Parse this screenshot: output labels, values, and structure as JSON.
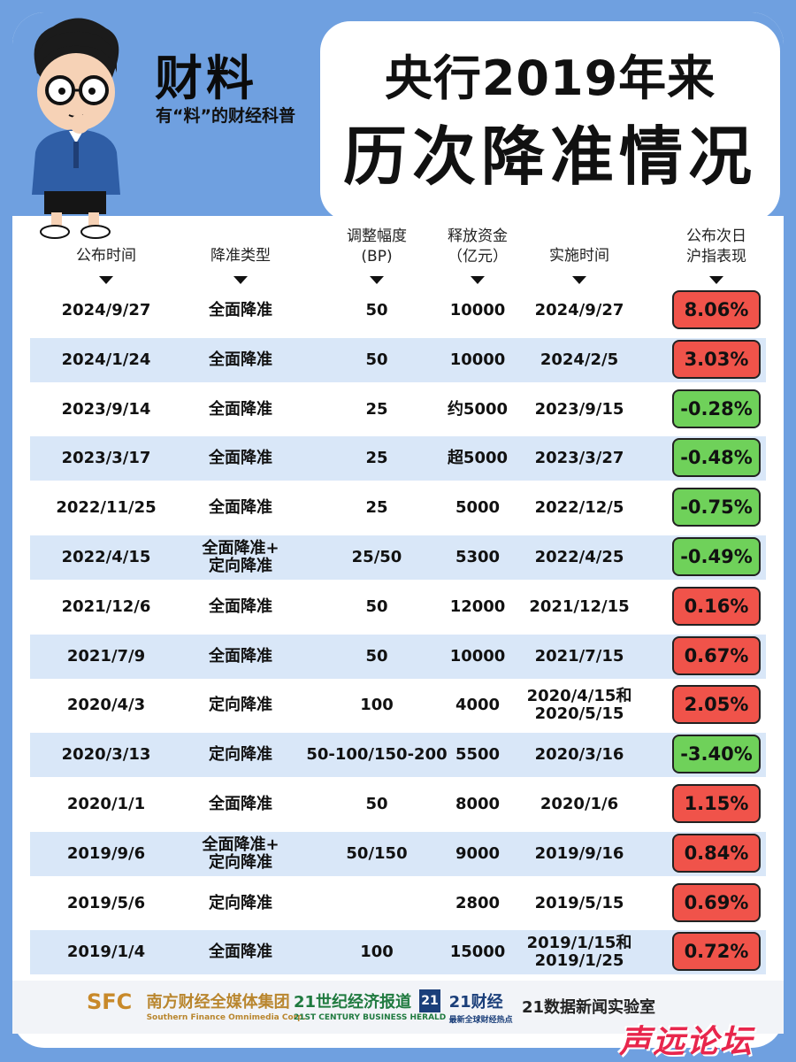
{
  "brand": {
    "name": "财料",
    "slogan": "有“料”的财经科普"
  },
  "title": {
    "line1": "央行2019年来",
    "line2": "历次降准情况"
  },
  "columns": [
    {
      "label": "公布时间"
    },
    {
      "label": "降准类型"
    },
    {
      "label": "调整幅度\n(BP)"
    },
    {
      "label": "释放资金\n（亿元）"
    },
    {
      "label": "实施时间"
    },
    {
      "label": "公布次日\n沪指表现"
    }
  ],
  "colors": {
    "up": "#f0534a",
    "down": "#6fd15a",
    "shade": "#d9e7f8",
    "background": "#6fa0e0"
  },
  "rows": [
    {
      "announce": "2024/9/27",
      "type": "全面降准",
      "bp": "50",
      "funds": "10000",
      "implement": "2024/9/27",
      "index": "8.06%",
      "trend": "up"
    },
    {
      "announce": "2024/1/24",
      "type": "全面降准",
      "bp": "50",
      "funds": "10000",
      "implement": "2024/2/5",
      "index": "3.03%",
      "trend": "up"
    },
    {
      "announce": "2023/9/14",
      "type": "全面降准",
      "bp": "25",
      "funds": "约5000",
      "implement": "2023/9/15",
      "index": "-0.28%",
      "trend": "down"
    },
    {
      "announce": "2023/3/17",
      "type": "全面降准",
      "bp": "25",
      "funds": "超5000",
      "implement": "2023/3/27",
      "index": "-0.48%",
      "trend": "down"
    },
    {
      "announce": "2022/11/25",
      "type": "全面降准",
      "bp": "25",
      "funds": "5000",
      "implement": "2022/12/5",
      "index": "-0.75%",
      "trend": "down"
    },
    {
      "announce": "2022/4/15",
      "type": "全面降准+\n定向降准",
      "bp": "25/50",
      "funds": "5300",
      "implement": "2022/4/25",
      "index": "-0.49%",
      "trend": "down"
    },
    {
      "announce": "2021/12/6",
      "type": "全面降准",
      "bp": "50",
      "funds": "12000",
      "implement": "2021/12/15",
      "index": "0.16%",
      "trend": "up"
    },
    {
      "announce": "2021/7/9",
      "type": "全面降准",
      "bp": "50",
      "funds": "10000",
      "implement": "2021/7/15",
      "index": "0.67%",
      "trend": "up"
    },
    {
      "announce": "2020/4/3",
      "type": "定向降准",
      "bp": "100",
      "funds": "4000",
      "implement": "2020/4/15和\n2020/5/15",
      "index": "2.05%",
      "trend": "up"
    },
    {
      "announce": "2020/3/13",
      "type": "定向降准",
      "bp": "50-100/150-200",
      "funds": "5500",
      "implement": "2020/3/16",
      "index": "-3.40%",
      "trend": "down"
    },
    {
      "announce": "2020/1/1",
      "type": "全面降准",
      "bp": "50",
      "funds": "8000",
      "implement": "2020/1/6",
      "index": "1.15%",
      "trend": "up"
    },
    {
      "announce": "2019/9/6",
      "type": "全面降准+\n定向降准",
      "bp": "50/150",
      "funds": "9000",
      "implement": "2019/9/16",
      "index": "0.84%",
      "trend": "up"
    },
    {
      "announce": "2019/5/6",
      "type": "定向降准",
      "bp": "",
      "funds": "2800",
      "implement": "2019/5/15",
      "index": "0.69%",
      "trend": "up"
    },
    {
      "announce": "2019/1/4",
      "type": "全面降准",
      "bp": "100",
      "funds": "15000",
      "implement": "2019/1/15和\n2019/1/25",
      "index": "0.72%",
      "trend": "up"
    }
  ],
  "footer": {
    "logos": [
      {
        "mark": "SFC",
        "name": "南方财经全媒体集团",
        "sub": "Southern Finance Omnimedia Corp."
      },
      {
        "name": "21世纪经济报道",
        "sub": "21ST CENTURY BUSINESS HERALD"
      },
      {
        "mark": "21",
        "name": "21财经",
        "sub": "最新全球财经热点"
      },
      {
        "name": "21数据新闻实验室"
      }
    ],
    "watermark": "声远论坛"
  }
}
